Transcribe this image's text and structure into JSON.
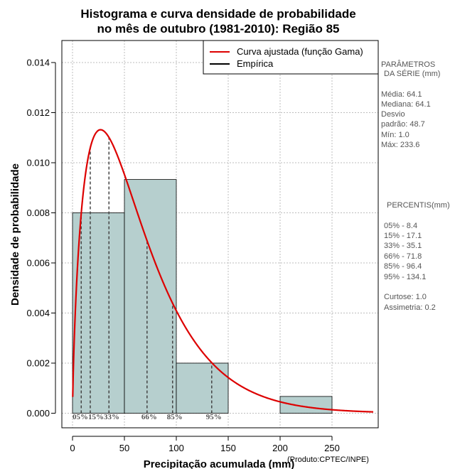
{
  "chart_data": {
    "type": "histogram",
    "title_lines": [
      "Histograma e curva densidade de probabilidade",
      "no mês de outubro (1981-2010): Região 85"
    ],
    "xlabel": "Precipitação acumulada (mm)",
    "ylabel": "Densidade de probabilidade",
    "credit": "(Produto:CPTEC/INPE)",
    "xlim": [
      -10,
      290
    ],
    "ylim": [
      -0.0005,
      0.0148
    ],
    "x_ticks": [
      0,
      50,
      100,
      150,
      200,
      250
    ],
    "y_ticks": [
      0.0,
      0.002,
      0.004,
      0.006,
      0.008,
      0.01,
      0.012,
      0.014
    ],
    "y_tick_labels": [
      "0.000",
      "0.002",
      "0.004",
      "0.006",
      "0.008",
      "0.010",
      "0.012",
      "0.014"
    ],
    "grid": true,
    "bins": [
      {
        "x0": 0,
        "x1": 50,
        "density": 0.008
      },
      {
        "x0": 50,
        "x1": 100,
        "density": 0.00933
      },
      {
        "x0": 100,
        "x1": 150,
        "density": 0.002
      },
      {
        "x0": 150,
        "x1": 200,
        "density": 0.0
      },
      {
        "x0": 200,
        "x1": 250,
        "density": 0.00067
      }
    ],
    "fitted_curve": {
      "name": "Curva ajustada (função Gama)",
      "distribution": "gamma",
      "shape": 1.73,
      "scale": 37.0,
      "color": "#dd0000"
    },
    "legend": [
      {
        "label": "Curva ajustada (função Gama)",
        "color": "#dd0000"
      },
      {
        "label": "Empírica",
        "color": "#000000"
      }
    ],
    "legend_position": "top-right",
    "percentile_lines": [
      {
        "label": "05%",
        "value": 8.4
      },
      {
        "label": "15%",
        "value": 17.1
      },
      {
        "label": "33%",
        "value": 35.1
      },
      {
        "label": "66%",
        "value": 71.8
      },
      {
        "label": "85%",
        "value": 96.4
      },
      {
        "label": "95%",
        "value": 134.1
      }
    ],
    "percentile_axis_text": "05%15%33%",
    "percentile_axis_labels": [
      {
        "label": "66%",
        "value": 71.8
      },
      {
        "label": "85%",
        "value": 96.4
      },
      {
        "label": "95%",
        "value": 134.1
      }
    ],
    "bar_color": "#b6cfce",
    "curve_color": "#dd0000"
  },
  "side_panel": {
    "params_title_1": "PARÂMETROS",
    "params_title_2": "DA SÉRIE (mm)",
    "stats": [
      "Média:  64.1",
      "Mediana:  64.1",
      "Desvio",
      "padrão:  48.7",
      "Mín:  1.0",
      "Máx:  233.6"
    ],
    "percentis_title": "PERCENTIS(mm)",
    "percentis": [
      "05% -   8.4",
      "15% -   17.1",
      "33% -   35.1",
      "66% -   71.8",
      "85% -   96.4",
      "95% -   134.1"
    ],
    "extra": [
      "Curtose:  1.0",
      "Assimetria:  0.2"
    ]
  }
}
